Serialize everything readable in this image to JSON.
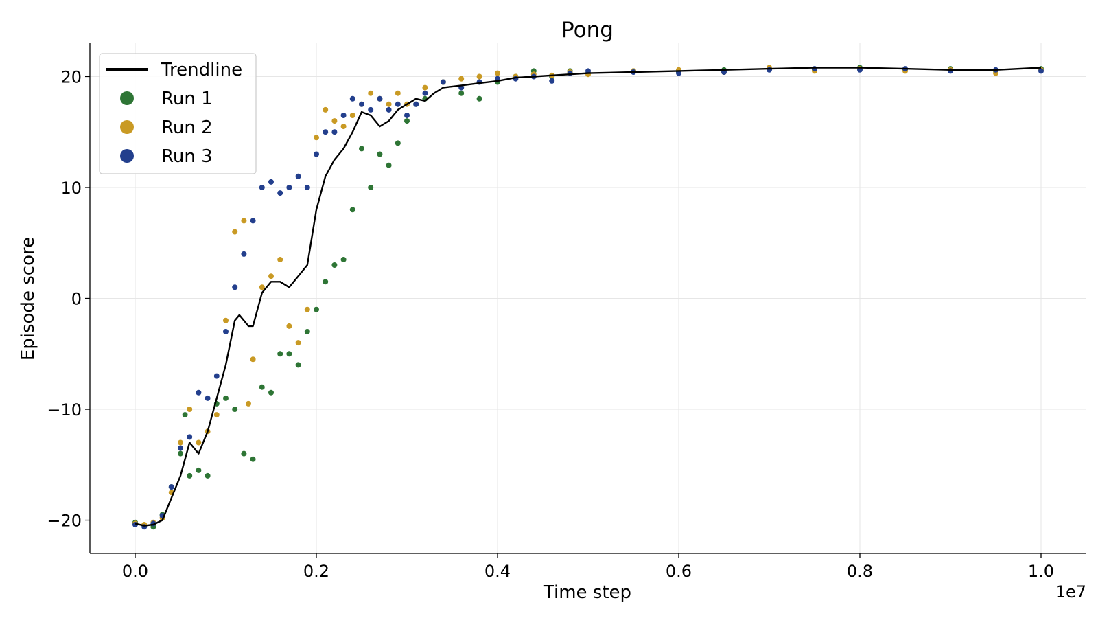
{
  "chart_data": {
    "type": "scatter",
    "title": "Pong",
    "xlabel": "Time step",
    "ylabel": "Episode score",
    "x_offset_label": "1e7",
    "xlim": [
      -0.05,
      1.05
    ],
    "ylim": [
      -23,
      23
    ],
    "xticks": [
      0.0,
      0.2,
      0.4,
      0.6,
      0.8,
      1.0
    ],
    "xtick_labels": [
      "0.0",
      "0.2",
      "0.4",
      "0.6",
      "0.8",
      "1.0"
    ],
    "yticks": [
      -20,
      -10,
      0,
      10,
      20
    ],
    "ytick_labels": [
      "−20",
      "−10",
      "0",
      "10",
      "20"
    ],
    "grid": true,
    "legend_position": "top-left",
    "colors": {
      "trendline": "#000000",
      "run1": "#2e7535",
      "run2": "#c99a24",
      "run3": "#233f8d"
    },
    "series": [
      {
        "name": "Trendline",
        "kind": "line",
        "x": [
          0.0,
          0.01,
          0.02,
          0.03,
          0.04,
          0.05,
          0.06,
          0.065,
          0.07,
          0.08,
          0.09,
          0.1,
          0.11,
          0.115,
          0.12,
          0.125,
          0.13,
          0.14,
          0.15,
          0.16,
          0.17,
          0.18,
          0.19,
          0.2,
          0.21,
          0.22,
          0.23,
          0.24,
          0.25,
          0.26,
          0.27,
          0.28,
          0.29,
          0.3,
          0.31,
          0.32,
          0.33,
          0.34,
          0.36,
          0.38,
          0.4,
          0.42,
          0.44,
          0.46,
          0.48,
          0.5,
          0.55,
          0.6,
          0.65,
          0.7,
          0.75,
          0.8,
          0.85,
          0.9,
          0.95,
          1.0
        ],
        "y": [
          -20.3,
          -20.5,
          -20.4,
          -20.0,
          -18.0,
          -16.0,
          -13.0,
          -13.5,
          -14.0,
          -12.0,
          -9.0,
          -6.0,
          -2.0,
          -1.5,
          -2.0,
          -2.5,
          -2.5,
          0.5,
          1.5,
          1.5,
          1.0,
          2.0,
          3.0,
          8.0,
          11.0,
          12.5,
          13.5,
          15.0,
          16.8,
          16.5,
          15.5,
          16.0,
          17.0,
          17.5,
          18.0,
          17.8,
          18.5,
          19.0,
          19.2,
          19.4,
          19.6,
          19.9,
          20.0,
          20.1,
          20.2,
          20.3,
          20.4,
          20.5,
          20.6,
          20.7,
          20.8,
          20.8,
          20.7,
          20.6,
          20.6,
          20.8
        ]
      },
      {
        "name": "Run 1",
        "kind": "scatter",
        "x": [
          0.0,
          0.01,
          0.02,
          0.03,
          0.04,
          0.05,
          0.055,
          0.06,
          0.07,
          0.08,
          0.09,
          0.1,
          0.11,
          0.12,
          0.13,
          0.14,
          0.15,
          0.16,
          0.17,
          0.18,
          0.19,
          0.2,
          0.21,
          0.22,
          0.23,
          0.24,
          0.25,
          0.26,
          0.27,
          0.28,
          0.29,
          0.3,
          0.31,
          0.32,
          0.34,
          0.36,
          0.38,
          0.4,
          0.42,
          0.44,
          0.46,
          0.48,
          0.5,
          0.55,
          0.6,
          0.65,
          0.7,
          0.75,
          0.8,
          0.85,
          0.9,
          0.95,
          1.0
        ],
        "y": [
          -20.2,
          -20.5,
          -20.6,
          -19.5,
          -17.0,
          -14.0,
          -10.5,
          -16.0,
          -15.5,
          -16.0,
          -9.5,
          -9.0,
          -10.0,
          -14.0,
          -14.5,
          -8.0,
          -8.5,
          -5.0,
          -5.0,
          -6.0,
          -3.0,
          -1.0,
          1.5,
          3.0,
          3.5,
          8.0,
          13.5,
          10.0,
          13.0,
          12.0,
          14.0,
          16.0,
          17.5,
          18.0,
          19.5,
          18.5,
          18.0,
          19.5,
          20.0,
          20.5,
          20.0,
          20.5,
          20.3,
          20.5,
          20.4,
          20.6,
          20.7,
          20.6,
          20.8,
          20.6,
          20.7,
          20.5,
          20.7
        ]
      },
      {
        "name": "Run 2",
        "kind": "scatter",
        "x": [
          0.0,
          0.01,
          0.02,
          0.03,
          0.04,
          0.05,
          0.06,
          0.07,
          0.08,
          0.09,
          0.1,
          0.11,
          0.12,
          0.125,
          0.13,
          0.14,
          0.15,
          0.16,
          0.17,
          0.18,
          0.19,
          0.2,
          0.21,
          0.22,
          0.23,
          0.24,
          0.25,
          0.26,
          0.27,
          0.28,
          0.29,
          0.3,
          0.32,
          0.34,
          0.36,
          0.38,
          0.4,
          0.42,
          0.44,
          0.46,
          0.48,
          0.5,
          0.55,
          0.6,
          0.65,
          0.7,
          0.75,
          0.8,
          0.85,
          0.9,
          0.95,
          1.0
        ],
        "y": [
          -20.3,
          -20.4,
          -20.2,
          -19.8,
          -17.5,
          -13.0,
          -10.0,
          -13.0,
          -12.0,
          -10.5,
          -2.0,
          6.0,
          7.0,
          -9.5,
          -5.5,
          1.0,
          2.0,
          3.5,
          -2.5,
          -4.0,
          -1.0,
          14.5,
          17.0,
          16.0,
          15.5,
          16.5,
          17.5,
          18.5,
          18.0,
          17.5,
          18.5,
          17.5,
          19.0,
          19.5,
          19.8,
          20.0,
          20.3,
          20.0,
          20.2,
          20.1,
          20.4,
          20.2,
          20.5,
          20.6,
          20.4,
          20.8,
          20.5,
          20.7,
          20.5,
          20.6,
          20.3,
          20.6
        ]
      },
      {
        "name": "Run 3",
        "kind": "scatter",
        "x": [
          0.0,
          0.01,
          0.02,
          0.03,
          0.04,
          0.05,
          0.06,
          0.07,
          0.08,
          0.09,
          0.1,
          0.11,
          0.12,
          0.13,
          0.14,
          0.15,
          0.16,
          0.17,
          0.18,
          0.19,
          0.2,
          0.21,
          0.22,
          0.23,
          0.24,
          0.25,
          0.26,
          0.27,
          0.28,
          0.29,
          0.3,
          0.31,
          0.32,
          0.34,
          0.36,
          0.38,
          0.4,
          0.42,
          0.44,
          0.46,
          0.48,
          0.5,
          0.55,
          0.6,
          0.65,
          0.7,
          0.75,
          0.8,
          0.85,
          0.9,
          0.95,
          1.0
        ],
        "y": [
          -20.4,
          -20.6,
          -20.3,
          -19.6,
          -17.0,
          -13.5,
          -12.5,
          -8.5,
          -9.0,
          -7.0,
          -3.0,
          1.0,
          4.0,
          7.0,
          10.0,
          10.5,
          9.5,
          10.0,
          11.0,
          10.0,
          13.0,
          15.0,
          15.0,
          16.5,
          18.0,
          17.5,
          17.0,
          18.0,
          17.0,
          17.5,
          16.5,
          17.5,
          18.5,
          19.5,
          19.0,
          19.5,
          19.8,
          19.8,
          20.0,
          19.6,
          20.3,
          20.5,
          20.4,
          20.3,
          20.4,
          20.6,
          20.7,
          20.6,
          20.7,
          20.5,
          20.6,
          20.5
        ]
      }
    ]
  }
}
